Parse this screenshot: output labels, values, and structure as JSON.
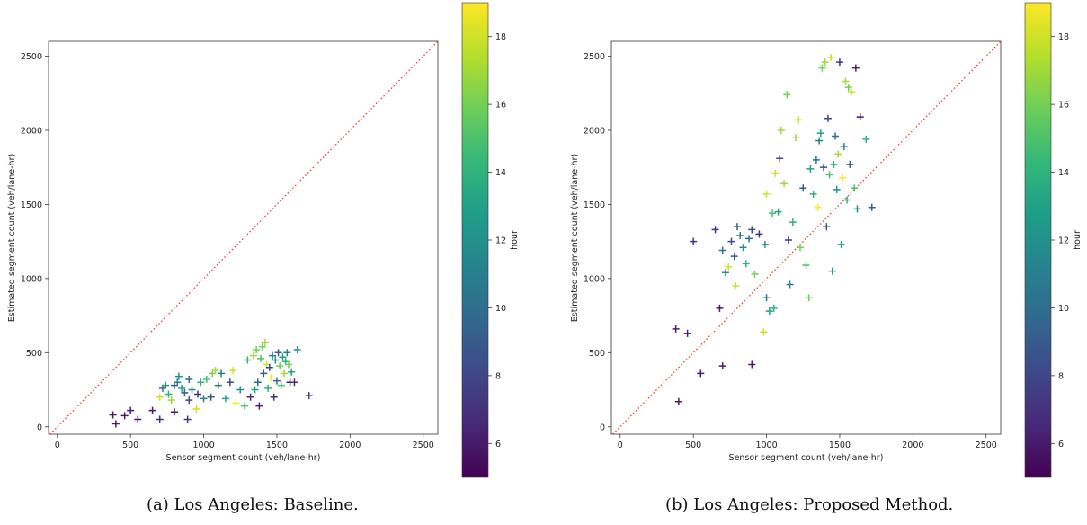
{
  "colormap": {
    "label": "hour",
    "min": 5,
    "max": 19,
    "ticks": [
      6,
      8,
      10,
      12,
      14,
      16,
      18
    ],
    "stops": [
      "#440154",
      "#482878",
      "#3e4989",
      "#31688e",
      "#26828e",
      "#1f9e89",
      "#35b779",
      "#6ece58",
      "#b5de2b",
      "#fde725"
    ]
  },
  "diagonal_color": "#e8402a",
  "marker": "+",
  "chart_data": [
    {
      "type": "scatter",
      "caption": "(a) Los Angeles: Baseline.",
      "xlabel": "Sensor segment count (veh/lane-hr)",
      "ylabel": "Estimated segment count (veh/lane-hr)",
      "xlim": [
        -60,
        2600
      ],
      "ylim": [
        -50,
        2600
      ],
      "xticks": [
        0,
        500,
        1000,
        1500,
        2000,
        2500
      ],
      "yticks": [
        0,
        500,
        1000,
        1500,
        2000,
        2500
      ],
      "reference_line": "y = x",
      "points": [
        {
          "x": 380,
          "y": 80,
          "hour": 6
        },
        {
          "x": 400,
          "y": 20,
          "hour": 6
        },
        {
          "x": 460,
          "y": 75,
          "hour": 6
        },
        {
          "x": 500,
          "y": 110,
          "hour": 6
        },
        {
          "x": 550,
          "y": 50,
          "hour": 6
        },
        {
          "x": 650,
          "y": 110,
          "hour": 6
        },
        {
          "x": 700,
          "y": 50,
          "hour": 7
        },
        {
          "x": 700,
          "y": 200,
          "hour": 18
        },
        {
          "x": 720,
          "y": 260,
          "hour": 10
        },
        {
          "x": 740,
          "y": 280,
          "hour": 12
        },
        {
          "x": 760,
          "y": 220,
          "hour": 14
        },
        {
          "x": 780,
          "y": 180,
          "hour": 17
        },
        {
          "x": 800,
          "y": 100,
          "hour": 6
        },
        {
          "x": 800,
          "y": 280,
          "hour": 9
        },
        {
          "x": 820,
          "y": 300,
          "hour": 11
        },
        {
          "x": 830,
          "y": 340,
          "hour": 12
        },
        {
          "x": 850,
          "y": 260,
          "hour": 13
        },
        {
          "x": 870,
          "y": 230,
          "hour": 9
        },
        {
          "x": 890,
          "y": 50,
          "hour": 7
        },
        {
          "x": 900,
          "y": 180,
          "hour": 8
        },
        {
          "x": 900,
          "y": 320,
          "hour": 10
        },
        {
          "x": 920,
          "y": 250,
          "hour": 12
        },
        {
          "x": 950,
          "y": 120,
          "hour": 18
        },
        {
          "x": 960,
          "y": 220,
          "hour": 7
        },
        {
          "x": 980,
          "y": 300,
          "hour": 14
        },
        {
          "x": 1000,
          "y": 190,
          "hour": 11
        },
        {
          "x": 1020,
          "y": 320,
          "hour": 15
        },
        {
          "x": 1050,
          "y": 200,
          "hour": 9
        },
        {
          "x": 1060,
          "y": 360,
          "hour": 16
        },
        {
          "x": 1080,
          "y": 380,
          "hour": 17
        },
        {
          "x": 1100,
          "y": 280,
          "hour": 10
        },
        {
          "x": 1120,
          "y": 360,
          "hour": 11
        },
        {
          "x": 1150,
          "y": 190,
          "hour": 13
        },
        {
          "x": 1180,
          "y": 300,
          "hour": 8
        },
        {
          "x": 1200,
          "y": 380,
          "hour": 18
        },
        {
          "x": 1220,
          "y": 160,
          "hour": 19
        },
        {
          "x": 1250,
          "y": 250,
          "hour": 12
        },
        {
          "x": 1280,
          "y": 140,
          "hour": 15
        },
        {
          "x": 1300,
          "y": 450,
          "hour": 14
        },
        {
          "x": 1320,
          "y": 200,
          "hour": 7
        },
        {
          "x": 1340,
          "y": 480,
          "hour": 17
        },
        {
          "x": 1350,
          "y": 250,
          "hour": 13
        },
        {
          "x": 1360,
          "y": 520,
          "hour": 16
        },
        {
          "x": 1370,
          "y": 300,
          "hour": 10
        },
        {
          "x": 1380,
          "y": 140,
          "hour": 6
        },
        {
          "x": 1390,
          "y": 460,
          "hour": 15
        },
        {
          "x": 1400,
          "y": 540,
          "hour": 16
        },
        {
          "x": 1410,
          "y": 360,
          "hour": 9
        },
        {
          "x": 1420,
          "y": 570,
          "hour": 17
        },
        {
          "x": 1430,
          "y": 420,
          "hour": 18
        },
        {
          "x": 1440,
          "y": 260,
          "hour": 14
        },
        {
          "x": 1450,
          "y": 400,
          "hour": 8
        },
        {
          "x": 1460,
          "y": 330,
          "hour": 19
        },
        {
          "x": 1470,
          "y": 480,
          "hour": 11
        },
        {
          "x": 1480,
          "y": 200,
          "hour": 7
        },
        {
          "x": 1490,
          "y": 450,
          "hour": 12
        },
        {
          "x": 1500,
          "y": 310,
          "hour": 10
        },
        {
          "x": 1510,
          "y": 500,
          "hour": 9
        },
        {
          "x": 1520,
          "y": 410,
          "hour": 16
        },
        {
          "x": 1530,
          "y": 280,
          "hour": 15
        },
        {
          "x": 1540,
          "y": 470,
          "hour": 13
        },
        {
          "x": 1550,
          "y": 360,
          "hour": 17
        },
        {
          "x": 1560,
          "y": 440,
          "hour": 14
        },
        {
          "x": 1570,
          "y": 500,
          "hour": 11
        },
        {
          "x": 1580,
          "y": 420,
          "hour": 16
        },
        {
          "x": 1590,
          "y": 300,
          "hour": 6
        },
        {
          "x": 1600,
          "y": 370,
          "hour": 13
        },
        {
          "x": 1620,
          "y": 300,
          "hour": 7
        },
        {
          "x": 1640,
          "y": 520,
          "hour": 12
        },
        {
          "x": 1720,
          "y": 210,
          "hour": 8
        }
      ]
    },
    {
      "type": "scatter",
      "caption": "(b) Los Angeles: Proposed Method.",
      "xlabel": "Sensor segment count (veh/lane-hr)",
      "ylabel": "Estimated segment count (veh/lane-hr)",
      "xlim": [
        -60,
        2600
      ],
      "ylim": [
        -50,
        2600
      ],
      "xticks": [
        0,
        500,
        1000,
        1500,
        2000,
        2500
      ],
      "yticks": [
        0,
        500,
        1000,
        1500,
        2000,
        2500
      ],
      "reference_line": "y = x",
      "points": [
        {
          "x": 380,
          "y": 660,
          "hour": 6
        },
        {
          "x": 400,
          "y": 170,
          "hour": 6
        },
        {
          "x": 460,
          "y": 630,
          "hour": 6
        },
        {
          "x": 500,
          "y": 1250,
          "hour": 7
        },
        {
          "x": 550,
          "y": 360,
          "hour": 6
        },
        {
          "x": 650,
          "y": 1330,
          "hour": 7
        },
        {
          "x": 680,
          "y": 800,
          "hour": 6
        },
        {
          "x": 700,
          "y": 410,
          "hour": 6
        },
        {
          "x": 700,
          "y": 1190,
          "hour": 10
        },
        {
          "x": 720,
          "y": 1040,
          "hour": 12
        },
        {
          "x": 740,
          "y": 1080,
          "hour": 18
        },
        {
          "x": 760,
          "y": 1250,
          "hour": 8
        },
        {
          "x": 780,
          "y": 1150,
          "hour": 9
        },
        {
          "x": 790,
          "y": 950,
          "hour": 18
        },
        {
          "x": 800,
          "y": 1350,
          "hour": 9
        },
        {
          "x": 820,
          "y": 1290,
          "hour": 11
        },
        {
          "x": 840,
          "y": 1210,
          "hour": 12
        },
        {
          "x": 860,
          "y": 1100,
          "hour": 14
        },
        {
          "x": 880,
          "y": 1270,
          "hour": 10
        },
        {
          "x": 900,
          "y": 420,
          "hour": 6
        },
        {
          "x": 900,
          "y": 1330,
          "hour": 8
        },
        {
          "x": 920,
          "y": 1030,
          "hour": 16
        },
        {
          "x": 950,
          "y": 1300,
          "hour": 7
        },
        {
          "x": 980,
          "y": 640,
          "hour": 18
        },
        {
          "x": 990,
          "y": 1230,
          "hour": 12
        },
        {
          "x": 1000,
          "y": 870,
          "hour": 11
        },
        {
          "x": 1000,
          "y": 1570,
          "hour": 18
        },
        {
          "x": 1020,
          "y": 780,
          "hour": 13
        },
        {
          "x": 1040,
          "y": 1440,
          "hour": 15
        },
        {
          "x": 1050,
          "y": 800,
          "hour": 14
        },
        {
          "x": 1060,
          "y": 1710,
          "hour": 18
        },
        {
          "x": 1080,
          "y": 1450,
          "hour": 13
        },
        {
          "x": 1090,
          "y": 1810,
          "hour": 8
        },
        {
          "x": 1100,
          "y": 2000,
          "hour": 17
        },
        {
          "x": 1120,
          "y": 1640,
          "hour": 17
        },
        {
          "x": 1140,
          "y": 2240,
          "hour": 16
        },
        {
          "x": 1150,
          "y": 1260,
          "hour": 7
        },
        {
          "x": 1160,
          "y": 960,
          "hour": 11
        },
        {
          "x": 1180,
          "y": 1380,
          "hour": 14
        },
        {
          "x": 1200,
          "y": 1950,
          "hour": 17
        },
        {
          "x": 1220,
          "y": 2070,
          "hour": 18
        },
        {
          "x": 1230,
          "y": 1210,
          "hour": 16
        },
        {
          "x": 1250,
          "y": 1610,
          "hour": 9
        },
        {
          "x": 1270,
          "y": 1090,
          "hour": 15
        },
        {
          "x": 1290,
          "y": 870,
          "hour": 16
        },
        {
          "x": 1300,
          "y": 1740,
          "hour": 13
        },
        {
          "x": 1320,
          "y": 1570,
          "hour": 14
        },
        {
          "x": 1340,
          "y": 1800,
          "hour": 10
        },
        {
          "x": 1350,
          "y": 1480,
          "hour": 19
        },
        {
          "x": 1360,
          "y": 1930,
          "hour": 11
        },
        {
          "x": 1370,
          "y": 1980,
          "hour": 13
        },
        {
          "x": 1380,
          "y": 2420,
          "hour": 16
        },
        {
          "x": 1390,
          "y": 1750,
          "hour": 8
        },
        {
          "x": 1400,
          "y": 2460,
          "hour": 17
        },
        {
          "x": 1410,
          "y": 1350,
          "hour": 9
        },
        {
          "x": 1420,
          "y": 2080,
          "hour": 8
        },
        {
          "x": 1430,
          "y": 1700,
          "hour": 15
        },
        {
          "x": 1440,
          "y": 2490,
          "hour": 18
        },
        {
          "x": 1450,
          "y": 1050,
          "hour": 12
        },
        {
          "x": 1460,
          "y": 1770,
          "hour": 14
        },
        {
          "x": 1470,
          "y": 1960,
          "hour": 10
        },
        {
          "x": 1480,
          "y": 1600,
          "hour": 12
        },
        {
          "x": 1490,
          "y": 1840,
          "hour": 17
        },
        {
          "x": 1500,
          "y": 2460,
          "hour": 7
        },
        {
          "x": 1510,
          "y": 1230,
          "hour": 13
        },
        {
          "x": 1520,
          "y": 1680,
          "hour": 19
        },
        {
          "x": 1530,
          "y": 1890,
          "hour": 11
        },
        {
          "x": 1540,
          "y": 2330,
          "hour": 17
        },
        {
          "x": 1550,
          "y": 1530,
          "hour": 14
        },
        {
          "x": 1560,
          "y": 2290,
          "hour": 16
        },
        {
          "x": 1570,
          "y": 1770,
          "hour": 9
        },
        {
          "x": 1580,
          "y": 2260,
          "hour": 18
        },
        {
          "x": 1600,
          "y": 1610,
          "hour": 15
        },
        {
          "x": 1610,
          "y": 2420,
          "hour": 6
        },
        {
          "x": 1620,
          "y": 1470,
          "hour": 12
        },
        {
          "x": 1640,
          "y": 2090,
          "hour": 6
        },
        {
          "x": 1680,
          "y": 1940,
          "hour": 14
        },
        {
          "x": 1720,
          "y": 1480,
          "hour": 9
        }
      ]
    }
  ]
}
